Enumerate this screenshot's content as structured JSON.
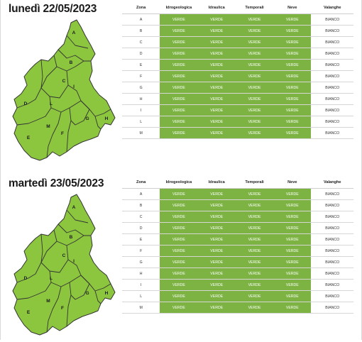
{
  "colors": {
    "green_level": "#7cb342",
    "map_fill": "#8cc63f",
    "map_stroke": "#333333",
    "text": "#1a1a1a"
  },
  "table_headers": [
    "Zona",
    "Idrogeologica",
    "Idraulica",
    "Temporali",
    "Neve",
    "Valanghe"
  ],
  "days": [
    {
      "title": "lunedì 22/05/2023",
      "rows": [
        {
          "zona": "A",
          "idrogeologica": "VERDE",
          "idraulica": "VERDE",
          "temporali": "VERDE",
          "neve": "VERDE",
          "valanghe": "BIANCO"
        },
        {
          "zona": "B",
          "idrogeologica": "VERDE",
          "idraulica": "VERDE",
          "temporali": "VERDE",
          "neve": "VERDE",
          "valanghe": "BIANCO"
        },
        {
          "zona": "C",
          "idrogeologica": "VERDE",
          "idraulica": "VERDE",
          "temporali": "VERDE",
          "neve": "VERDE",
          "valanghe": "BIANCO"
        },
        {
          "zona": "D",
          "idrogeologica": "VERDE",
          "idraulica": "VERDE",
          "temporali": "VERDE",
          "neve": "VERDE",
          "valanghe": "BIANCO"
        },
        {
          "zona": "E",
          "idrogeologica": "VERDE",
          "idraulica": "VERDE",
          "temporali": "VERDE",
          "neve": "VERDE",
          "valanghe": "BIANCO"
        },
        {
          "zona": "F",
          "idrogeologica": "VERDE",
          "idraulica": "VERDE",
          "temporali": "VERDE",
          "neve": "VERDE",
          "valanghe": "BIANCO"
        },
        {
          "zona": "G",
          "idrogeologica": "VERDE",
          "idraulica": "VERDE",
          "temporali": "VERDE",
          "neve": "VERDE",
          "valanghe": "BIANCO"
        },
        {
          "zona": "H",
          "idrogeologica": "VERDE",
          "idraulica": "VERDE",
          "temporali": "VERDE",
          "neve": "VERDE",
          "valanghe": "BIANCO"
        },
        {
          "zona": "I",
          "idrogeologica": "VERDE",
          "idraulica": "VERDE",
          "temporali": "VERDE",
          "neve": "VERDE",
          "valanghe": "BIANCO"
        },
        {
          "zona": "L",
          "idrogeologica": "VERDE",
          "idraulica": "VERDE",
          "temporali": "VERDE",
          "neve": "VERDE",
          "valanghe": "BIANCO"
        },
        {
          "zona": "M",
          "idrogeologica": "VERDE",
          "idraulica": "VERDE",
          "temporali": "VERDE",
          "neve": "VERDE",
          "valanghe": "BIANCO"
        }
      ],
      "map_labels": [
        "A",
        "B",
        "C",
        "D",
        "E",
        "F",
        "G",
        "H",
        "I",
        "L",
        "M"
      ]
    },
    {
      "title": "martedì 23/05/2023",
      "rows": [
        {
          "zona": "A",
          "idrogeologica": "VERDE",
          "idraulica": "VERDE",
          "temporali": "VERDE",
          "neve": "VERDE",
          "valanghe": "BIANCO"
        },
        {
          "zona": "B",
          "idrogeologica": "VERDE",
          "idraulica": "VERDE",
          "temporali": "VERDE",
          "neve": "VERDE",
          "valanghe": "BIANCO"
        },
        {
          "zona": "C",
          "idrogeologica": "VERDE",
          "idraulica": "VERDE",
          "temporali": "VERDE",
          "neve": "VERDE",
          "valanghe": "BIANCO"
        },
        {
          "zona": "D",
          "idrogeologica": "VERDE",
          "idraulica": "VERDE",
          "temporali": "VERDE",
          "neve": "VERDE",
          "valanghe": "BIANCO"
        },
        {
          "zona": "E",
          "idrogeologica": "VERDE",
          "idraulica": "VERDE",
          "temporali": "VERDE",
          "neve": "VERDE",
          "valanghe": "BIANCO"
        },
        {
          "zona": "F",
          "idrogeologica": "VERDE",
          "idraulica": "VERDE",
          "temporali": "VERDE",
          "neve": "VERDE",
          "valanghe": "BIANCO"
        },
        {
          "zona": "G",
          "idrogeologica": "VERDE",
          "idraulica": "VERDE",
          "temporali": "VERDE",
          "neve": "VERDE",
          "valanghe": "BIANCO"
        },
        {
          "zona": "H",
          "idrogeologica": "VERDE",
          "idraulica": "VERDE",
          "temporali": "VERDE",
          "neve": "VERDE",
          "valanghe": "BIANCO"
        },
        {
          "zona": "I",
          "idrogeologica": "VERDE",
          "idraulica": "VERDE",
          "temporali": "VERDE",
          "neve": "VERDE",
          "valanghe": "BIANCO"
        },
        {
          "zona": "L",
          "idrogeologica": "VERDE",
          "idraulica": "VERDE",
          "temporali": "VERDE",
          "neve": "VERDE",
          "valanghe": "BIANCO"
        },
        {
          "zona": "M",
          "idrogeologica": "VERDE",
          "idraulica": "VERDE",
          "temporali": "VERDE",
          "neve": "VERDE",
          "valanghe": "BIANCO"
        }
      ],
      "map_labels": [
        "A",
        "B",
        "C",
        "D",
        "E",
        "F",
        "G",
        "H",
        "I",
        "L",
        "M"
      ]
    }
  ]
}
